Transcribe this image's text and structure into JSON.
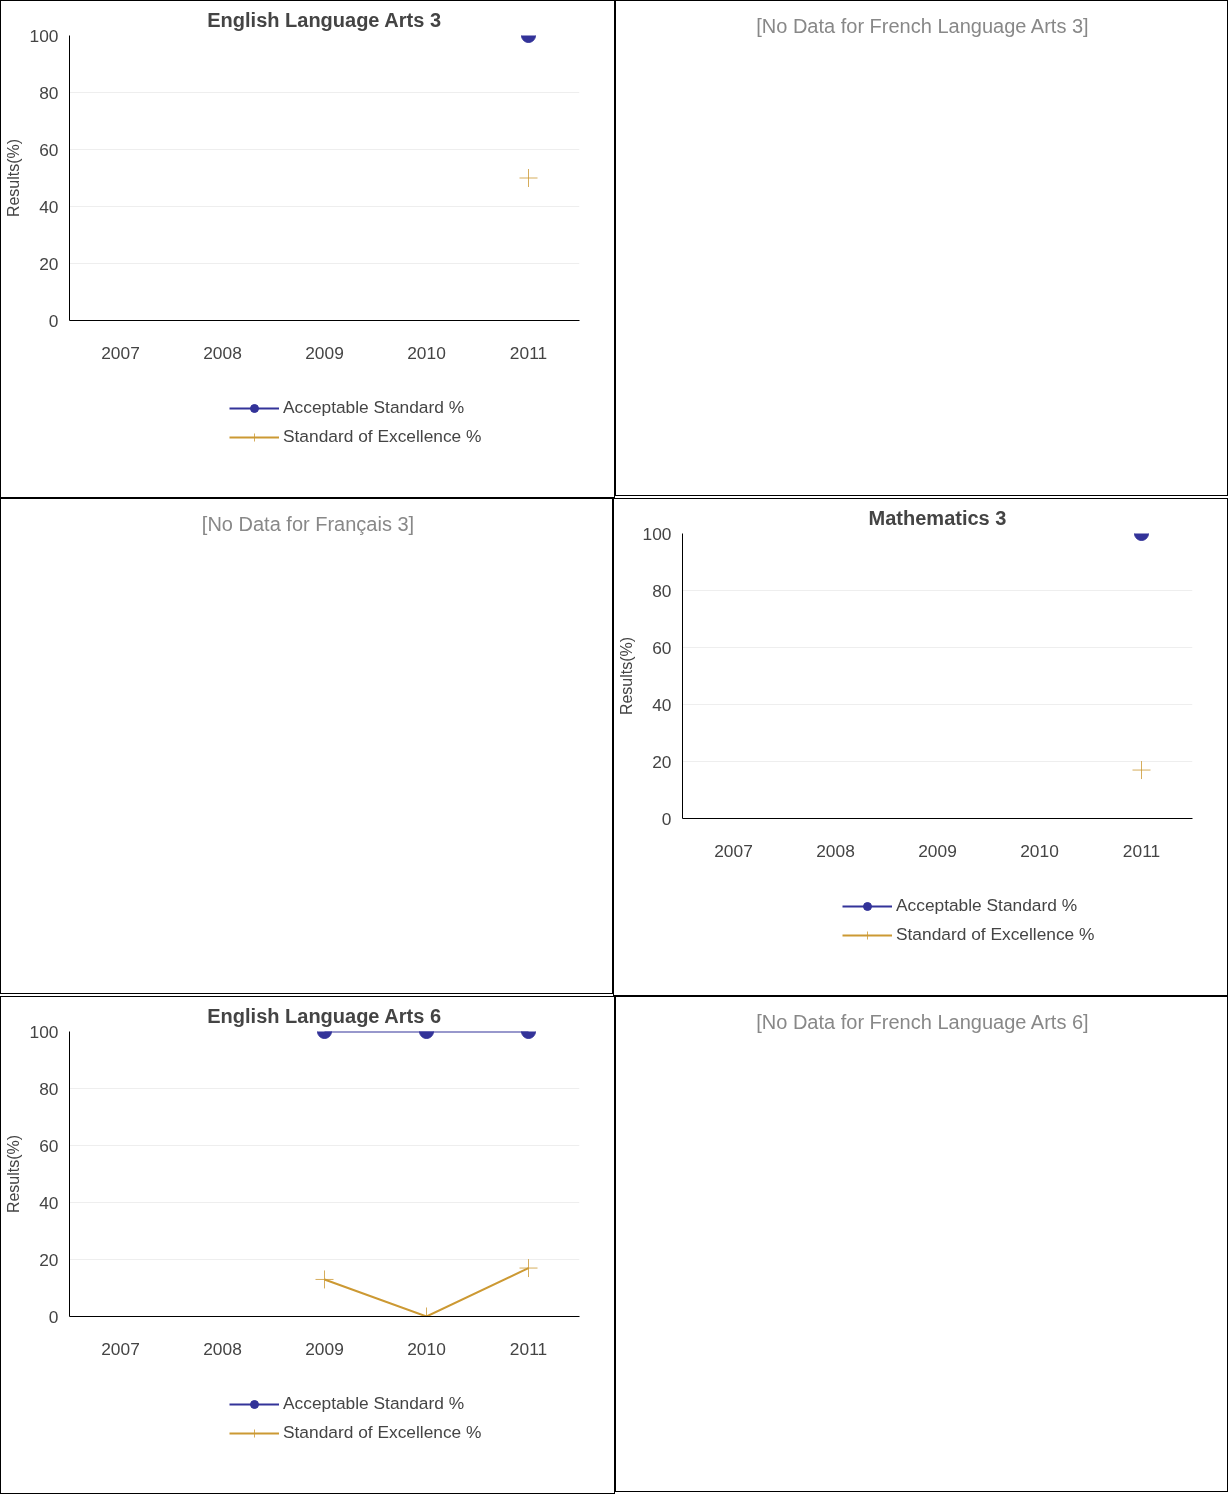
{
  "chart_data": [
    {
      "type": "line",
      "title": "English Language Arts 3",
      "ylabel": "Results(%)",
      "categories": [
        "2007",
        "2008",
        "2009",
        "2010",
        "2011"
      ],
      "ylim": [
        0,
        100
      ],
      "yticks": [
        0,
        20,
        40,
        60,
        80,
        100
      ],
      "grid": "y",
      "legend": "bottom",
      "series": [
        {
          "name": "Acceptable Standard %",
          "color": "#333399",
          "marker": "circle",
          "values": [
            null,
            null,
            null,
            null,
            100
          ]
        },
        {
          "name": "Standard of Excellence %",
          "color": "#cc9933",
          "marker": "cross",
          "values": [
            null,
            null,
            null,
            null,
            50
          ]
        }
      ]
    },
    {
      "type": "other",
      "title": "[No Data for French Language Arts 3]"
    },
    {
      "type": "other",
      "title": "[No Data for Français 3]"
    },
    {
      "type": "line",
      "title": "Mathematics 3",
      "ylabel": "Results(%)",
      "categories": [
        "2007",
        "2008",
        "2009",
        "2010",
        "2011"
      ],
      "ylim": [
        0,
        100
      ],
      "yticks": [
        0,
        20,
        40,
        60,
        80,
        100
      ],
      "grid": "y",
      "legend": "bottom",
      "series": [
        {
          "name": "Acceptable Standard %",
          "color": "#333399",
          "marker": "circle",
          "values": [
            null,
            null,
            null,
            null,
            100
          ]
        },
        {
          "name": "Standard of Excellence %",
          "color": "#cc9933",
          "marker": "cross",
          "values": [
            null,
            null,
            null,
            null,
            17
          ]
        }
      ]
    },
    {
      "type": "line",
      "title": "English Language Arts 6",
      "ylabel": "Results(%)",
      "categories": [
        "2007",
        "2008",
        "2009",
        "2010",
        "2011"
      ],
      "ylim": [
        0,
        100
      ],
      "yticks": [
        0,
        20,
        40,
        60,
        80,
        100
      ],
      "grid": "y",
      "legend": "bottom",
      "series": [
        {
          "name": "Acceptable Standard %",
          "color": "#333399",
          "marker": "circle",
          "values": [
            null,
            null,
            100,
            100,
            100
          ]
        },
        {
          "name": "Standard of Excellence %",
          "color": "#cc9933",
          "marker": "cross",
          "values": [
            null,
            null,
            13,
            0,
            17
          ]
        }
      ]
    },
    {
      "type": "other",
      "title": "[No Data for French Language Arts 6]"
    }
  ]
}
